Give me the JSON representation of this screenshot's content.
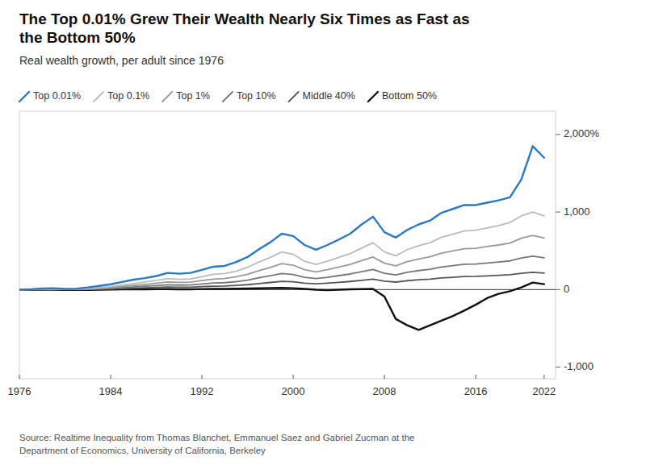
{
  "chart_data": {
    "type": "line",
    "title": "The Top 0.01% Grew Their Wealth Nearly Six Times as Fast as\nthe Bottom 50%",
    "subtitle": "Real wealth growth, per adult since 1976",
    "annotations": [
      "Source: Realtime Inequality from Thomas Blanchet, Emmanuel Saez and Gabriel Zucman at the\nDepartment of Economics, University of California, Berkeley"
    ],
    "x": [
      1976,
      1977,
      1978,
      1979,
      1980,
      1981,
      1982,
      1983,
      1984,
      1985,
      1986,
      1987,
      1988,
      1989,
      1990,
      1991,
      1992,
      1993,
      1994,
      1995,
      1996,
      1997,
      1998,
      1999,
      2000,
      2001,
      2002,
      2003,
      2004,
      2005,
      2006,
      2007,
      2008,
      2009,
      2010,
      2011,
      2012,
      2013,
      2014,
      2015,
      2016,
      2017,
      2018,
      2019,
      2020,
      2021,
      2022
    ],
    "series": [
      {
        "name": "Top 0.01%",
        "color": "#2979C8",
        "values": [
          0,
          5,
          14,
          18,
          8,
          12,
          28,
          48,
          68,
          98,
          128,
          148,
          175,
          215,
          205,
          215,
          255,
          295,
          305,
          355,
          420,
          520,
          610,
          720,
          690,
          575,
          515,
          575,
          645,
          720,
          840,
          940,
          740,
          670,
          770,
          840,
          890,
          990,
          1040,
          1090,
          1090,
          1120,
          1150,
          1190,
          1420,
          1850,
          1700
        ]
      },
      {
        "name": "Top 0.1%",
        "color": "#BBBBBB",
        "values": [
          0,
          3,
          7,
          9,
          4,
          7,
          14,
          24,
          38,
          58,
          78,
          98,
          118,
          142,
          132,
          138,
          167,
          197,
          207,
          237,
          287,
          355,
          415,
          485,
          455,
          365,
          325,
          365,
          415,
          465,
          535,
          605,
          485,
          435,
          515,
          565,
          605,
          675,
          715,
          755,
          765,
          795,
          825,
          865,
          950,
          1000,
          950
        ]
      },
      {
        "name": "Top 1%",
        "color": "#999999",
        "values": [
          0,
          2,
          5,
          7,
          3,
          5,
          9,
          17,
          27,
          40,
          53,
          68,
          83,
          98,
          93,
          96,
          116,
          135,
          142,
          165,
          196,
          244,
          286,
          335,
          315,
          256,
          229,
          256,
          290,
          325,
          373,
          420,
          340,
          306,
          360,
          395,
          423,
          470,
          498,
          526,
          532,
          555,
          575,
          600,
          662,
          698,
          664
        ]
      },
      {
        "name": "Top 10%",
        "color": "#777777",
        "values": [
          0,
          1,
          3,
          4,
          2,
          3,
          6,
          11,
          16,
          25,
          33,
          43,
          52,
          61,
          58,
          60,
          72,
          85,
          89,
          102,
          122,
          152,
          178,
          208,
          195,
          158,
          142,
          158,
          180,
          201,
          231,
          260,
          210,
          190,
          223,
          245,
          262,
          291,
          308,
          326,
          329,
          343,
          355,
          370,
          408,
          430,
          410
        ]
      },
      {
        "name": "Middle 40%",
        "color": "#555555",
        "values": [
          0,
          1,
          2,
          2,
          1,
          1,
          3,
          5,
          8,
          13,
          17,
          22,
          27,
          32,
          30,
          31,
          38,
          44,
          46,
          54,
          63,
          78,
          92,
          107,
          101,
          82,
          74,
          82,
          93,
          105,
          120,
          134,
          109,
          97,
          115,
          126,
          135,
          150,
          159,
          168,
          170,
          177,
          183,
          191,
          210,
          222,
          212
        ]
      },
      {
        "name": "Bottom 50%",
        "color": "#111111",
        "values": [
          0,
          -1,
          -2,
          -3,
          -5,
          -5,
          -4,
          -2,
          0,
          2,
          3,
          4,
          5,
          6,
          4,
          4,
          7,
          9,
          9,
          11,
          14,
          16,
          19,
          22,
          18,
          8,
          -2,
          -7,
          -2,
          3,
          6,
          8,
          -90,
          -380,
          -460,
          -520,
          -460,
          -400,
          -340,
          -270,
          -195,
          -110,
          -55,
          -22,
          28,
          90,
          70
        ]
      }
    ],
    "xlim": [
      1976,
      2023
    ],
    "xticks": [
      1976,
      1984,
      1992,
      2000,
      2008,
      2016,
      2022
    ],
    "ylim": [
      -1150,
      2300
    ],
    "yticks": [
      {
        "value": -1000,
        "label": "-1,000"
      },
      0,
      {
        "value": 1000,
        "label": "1,000"
      },
      {
        "value": 2000,
        "label": "2,000%"
      }
    ],
    "grid": false,
    "legend": "top left"
  }
}
